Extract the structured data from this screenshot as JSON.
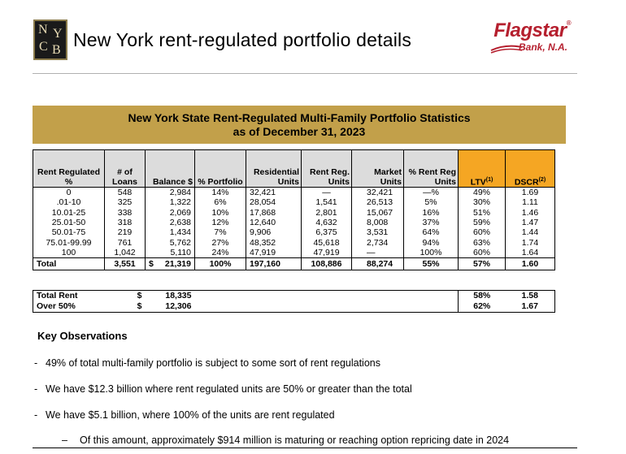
{
  "header": {
    "logo_letters": [
      "N",
      "Y",
      "C",
      "B"
    ],
    "title": "New York rent-regulated portfolio details",
    "brand": {
      "name": "Flagstar",
      "reg": "®",
      "sub": "Bank, N.A."
    }
  },
  "banner": {
    "line1": "New York State Rent-Regulated Multi-Family Portfolio Statistics",
    "line2": "as of December 31, 2023"
  },
  "table": {
    "headers": {
      "rent": "Rent Regulated %",
      "loans": "# of Loans",
      "balance": "Balance $",
      "portfolio": "% Portfolio",
      "residential": "Residential Units",
      "rentreg": "Rent Reg. Units",
      "market": "Market Units",
      "pctrentreg": "% Rent Reg Units",
      "ltv": "LTV",
      "ltv_sup": "(1)",
      "dscr": "DSCR",
      "dscr_sup": "(2)"
    },
    "rows": [
      [
        "0",
        "548",
        "2,984",
        "14%",
        "32,421",
        "—",
        "32,421",
        "—%",
        "49%",
        "1.69"
      ],
      [
        ".01-10",
        "325",
        "1,322",
        "6%",
        "28,054",
        "1,541",
        "26,513",
        "5%",
        "30%",
        "1.11"
      ],
      [
        "10.01-25",
        "338",
        "2,069",
        "10%",
        "17,868",
        "2,801",
        "15,067",
        "16%",
        "51%",
        "1.46"
      ],
      [
        "25.01-50",
        "318",
        "2,638",
        "12%",
        "12,640",
        "4,632",
        "8,008",
        "37%",
        "59%",
        "1.47"
      ],
      [
        "50.01-75",
        "219",
        "1,434",
        "7%",
        "9,906",
        "6,375",
        "3,531",
        "64%",
        "60%",
        "1.44"
      ],
      [
        "75.01-99.99",
        "761",
        "5,762",
        "27%",
        "48,352",
        "45,618",
        "2,734",
        "94%",
        "63%",
        "1.74"
      ],
      [
        "100",
        "1,042",
        "5,110",
        "24%",
        "47,919",
        "47,919",
        "—",
        "100%",
        "60%",
        "1.64"
      ]
    ],
    "total": {
      "label": "Total",
      "loans": "3,551",
      "currency": "$",
      "balance": "21,319",
      "portfolio": "100%",
      "residential": "197,160",
      "rentreg": "108,886",
      "market": "88,274",
      "pctrentreg": "55%",
      "ltv": "57%",
      "dscr": "1.60"
    }
  },
  "summary": [
    {
      "label": "Total Rent",
      "currency": "$",
      "balance": "18,335",
      "ltv": "58%",
      "dscr": "1.58"
    },
    {
      "label": "Over 50%",
      "currency": "$",
      "balance": "12,306",
      "ltv": "62%",
      "dscr": "1.67"
    }
  ],
  "observations": {
    "title": "Key Observations",
    "bullets": [
      "49% of total multi-family portfolio is subject to some sort of rent regulations",
      "We have $12.3 billion where rent regulated units are 50% or greater than the total",
      "We have $5.1 billion, where 100% of the units are rent regulated"
    ],
    "sub": "Of this amount, approximately $914 million is maturing or reaching option repricing date in 2024",
    "bullet_marker": "-",
    "sub_marker": "–"
  },
  "colors": {
    "banner": "#c2a04a",
    "highlight": "#f5a623",
    "brand": "#b51f2e"
  }
}
